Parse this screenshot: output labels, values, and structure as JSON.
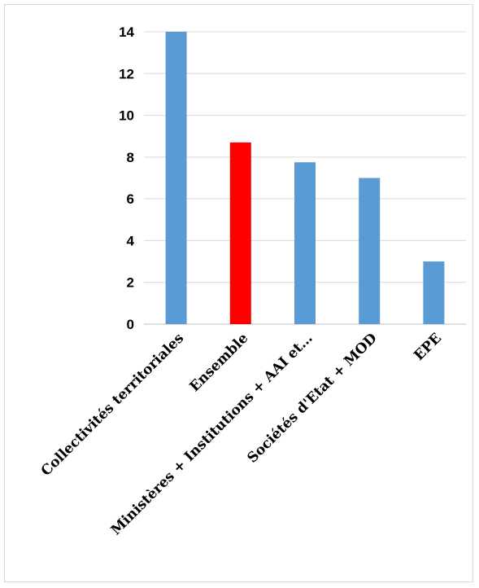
{
  "chart_data": {
    "type": "bar",
    "title": "",
    "xlabel": "",
    "ylabel": "",
    "ylim": [
      0,
      14
    ],
    "yticks": [
      0,
      2,
      4,
      6,
      8,
      10,
      12,
      14
    ],
    "grid": true,
    "legend": "none",
    "categories": [
      "Collectivités territoriales",
      "Ensemble",
      "Ministères + Institutions + AAI et…",
      "Sociétés d'Etat + MOD",
      "EPE"
    ],
    "values": [
      14,
      8.7,
      7.75,
      7,
      3
    ],
    "colors": [
      "#5b9bd5",
      "#ff0000",
      "#5b9bd5",
      "#5b9bd5",
      "#5b9bd5"
    ]
  }
}
